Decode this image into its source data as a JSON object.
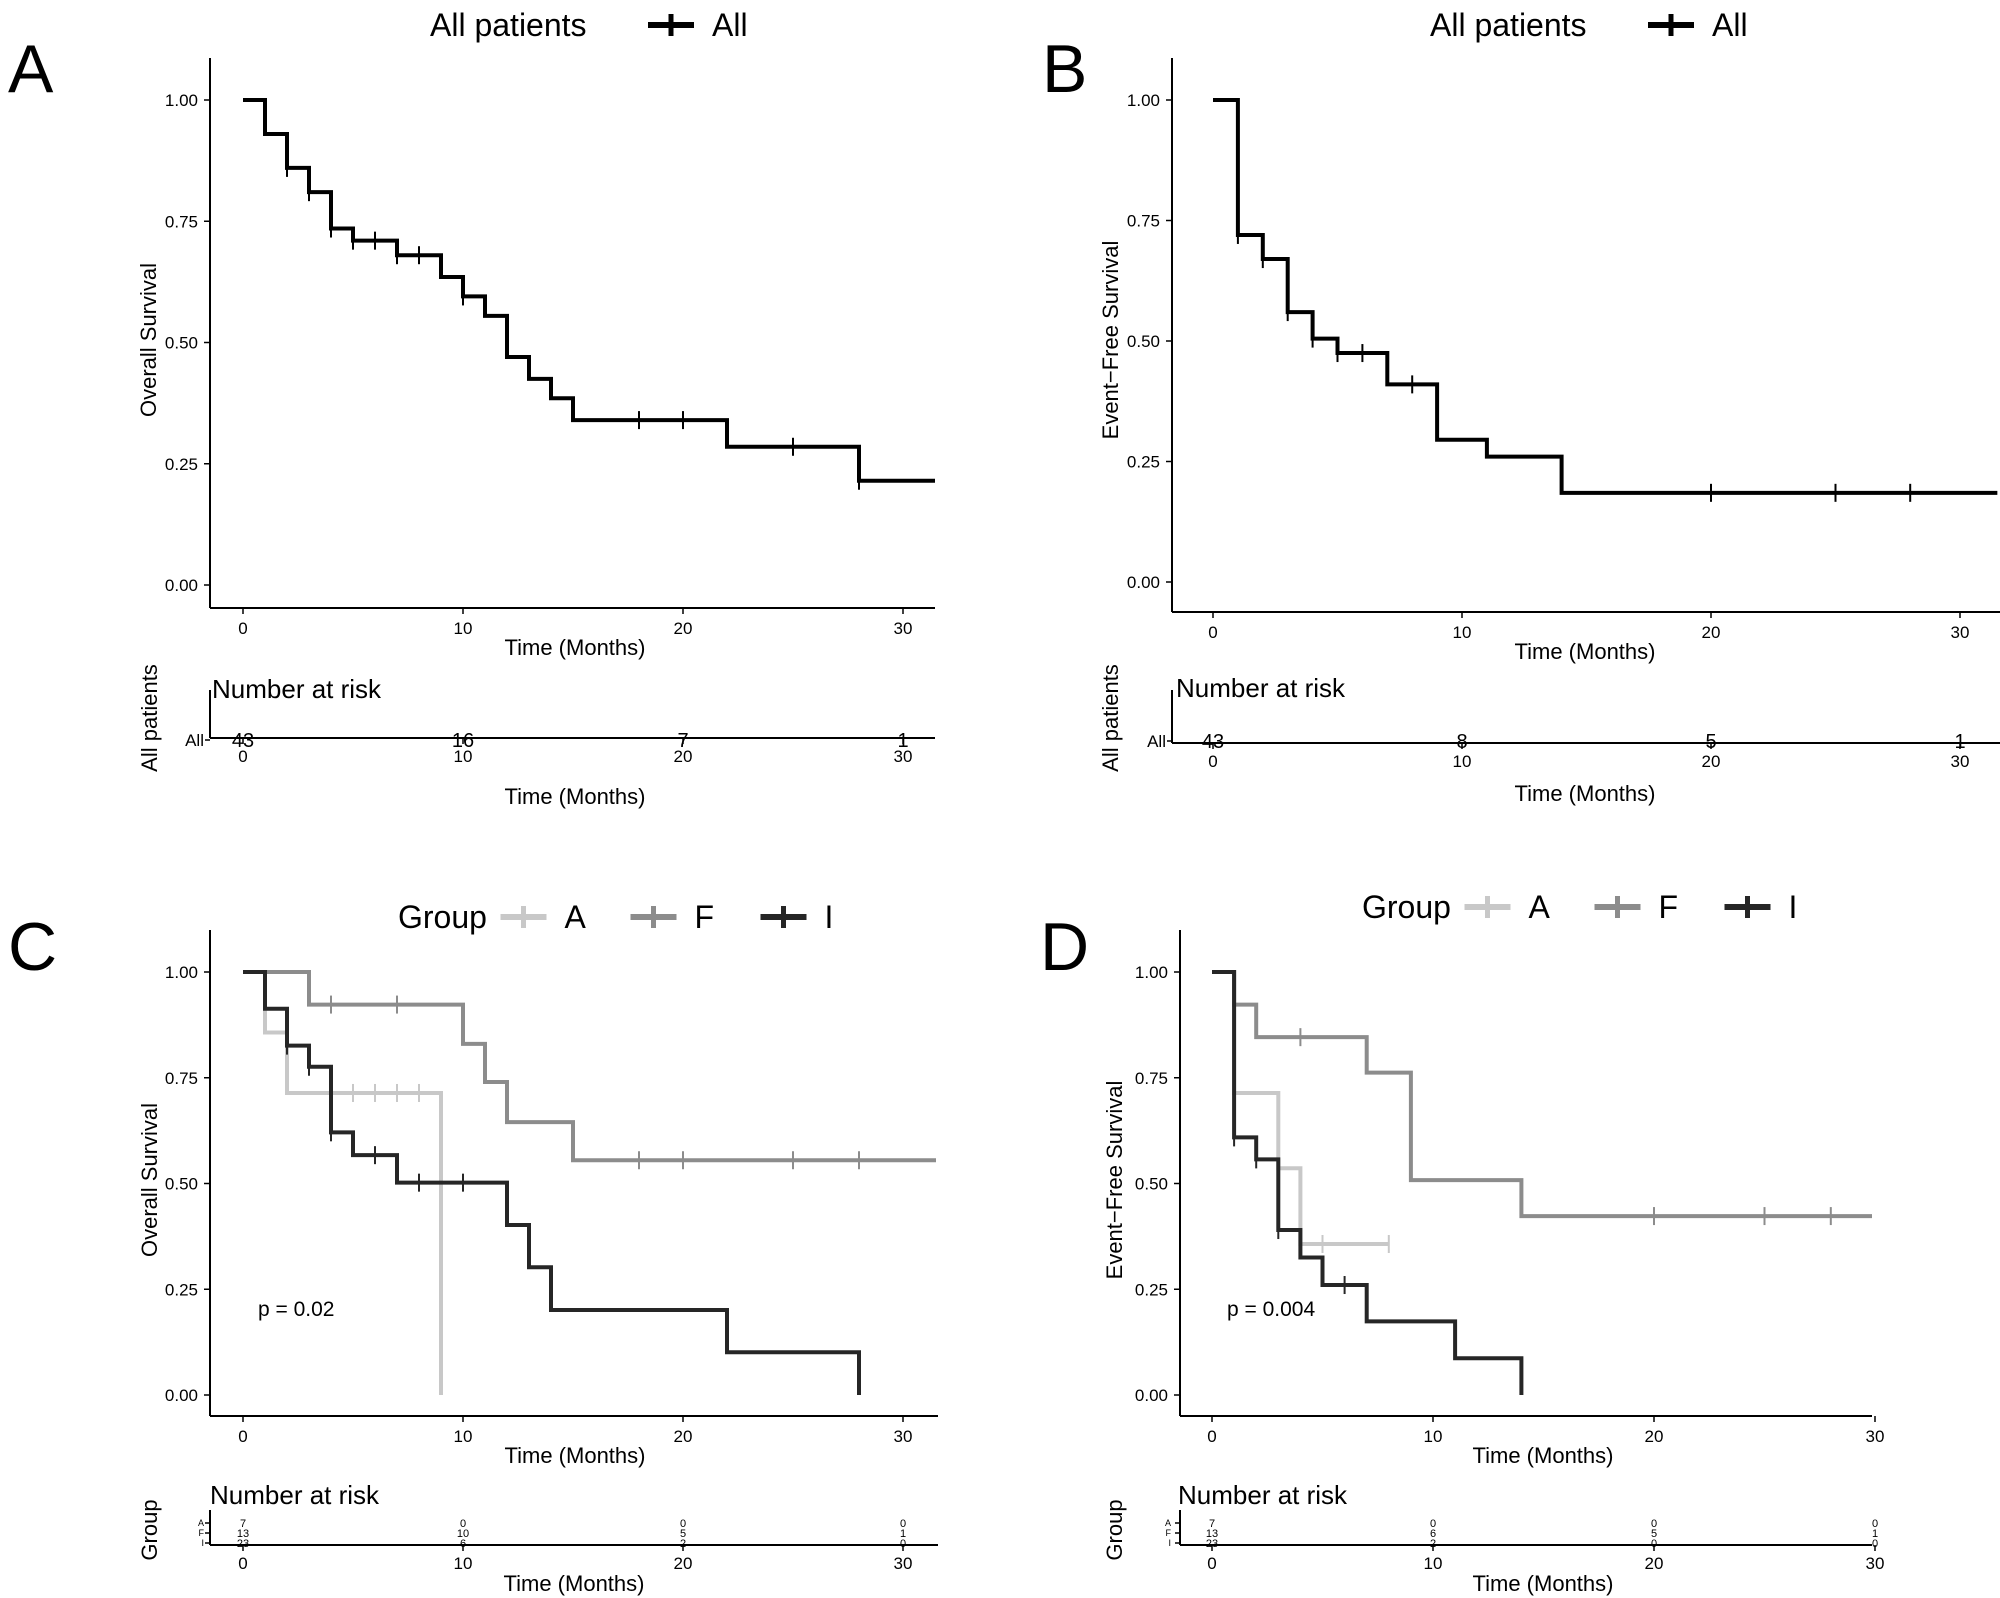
{
  "panels": [
    {
      "id": "A",
      "letter": "A",
      "legend_title": "All patients",
      "legend_items": [
        {
          "label": "All",
          "color": "#000000"
        }
      ],
      "ylabel": "Overall Survival",
      "xlabel": "Time (Months)",
      "risk_title": "Number at risk",
      "risk_ylabel": "All patients",
      "risk_xlabel": "Time (Months)",
      "risk_rows": [
        {
          "label": "All",
          "color": "#000000",
          "values": [
            "43",
            "16",
            "7",
            "1"
          ]
        }
      ],
      "risk_times": [
        0,
        10,
        20,
        30
      ],
      "pvalue": ""
    },
    {
      "id": "B",
      "letter": "B",
      "legend_title": "All patients",
      "legend_items": [
        {
          "label": "All",
          "color": "#000000"
        }
      ],
      "ylabel": "Event−Free Survival",
      "xlabel": "Time (Months)",
      "risk_title": "Number at risk",
      "risk_ylabel": "All patients",
      "risk_xlabel": "Time (Months)",
      "risk_rows": [
        {
          "label": "All",
          "color": "#000000",
          "values": [
            "43",
            "8",
            "5",
            "1"
          ]
        }
      ],
      "risk_times": [
        0,
        10,
        20,
        30
      ],
      "pvalue": ""
    },
    {
      "id": "C",
      "letter": "C",
      "legend_title": "Group",
      "legend_items": [
        {
          "label": "A",
          "color": "#c8c8c8"
        },
        {
          "label": "F",
          "color": "#8c8c8c"
        },
        {
          "label": "I",
          "color": "#262626"
        }
      ],
      "ylabel": "Overall Survival",
      "xlabel": "Time (Months)",
      "risk_title": "Number at risk",
      "risk_ylabel": "Group",
      "risk_xlabel": "Time (Months)",
      "risk_rows": [
        {
          "label": "A",
          "color": "#c8c8c8",
          "values": [
            "7",
            "0",
            "0",
            "0"
          ]
        },
        {
          "label": "F",
          "color": "#8c8c8c",
          "values": [
            "13",
            "10",
            "5",
            "1"
          ]
        },
        {
          "label": "I",
          "color": "#262626",
          "values": [
            "23",
            "6",
            "2",
            "0"
          ]
        }
      ],
      "risk_times": [
        0,
        10,
        20,
        30
      ],
      "pvalue": "p = 0.02"
    },
    {
      "id": "D",
      "letter": "D",
      "legend_title": "Group",
      "legend_items": [
        {
          "label": "A",
          "color": "#c8c8c8"
        },
        {
          "label": "F",
          "color": "#8c8c8c"
        },
        {
          "label": "I",
          "color": "#262626"
        }
      ],
      "ylabel": "Event−Free Survival",
      "xlabel": "Time (Months)",
      "risk_title": "Number at risk",
      "risk_ylabel": "Group",
      "risk_xlabel": "Time (Months)",
      "risk_rows": [
        {
          "label": "A",
          "color": "#c8c8c8",
          "values": [
            "7",
            "0",
            "0",
            "0"
          ]
        },
        {
          "label": "F",
          "color": "#8c8c8c",
          "values": [
            "13",
            "6",
            "5",
            "1"
          ]
        },
        {
          "label": "I",
          "color": "#262626",
          "values": [
            "23",
            "2",
            "0",
            "0"
          ]
        }
      ],
      "risk_times": [
        0,
        10,
        20,
        30
      ],
      "pvalue": "p = 0.004"
    }
  ],
  "chart_data": [
    {
      "type": "line",
      "panel": "A",
      "step": "post",
      "xlabel": "Time (Months)",
      "ylabel": "Overall Survival",
      "xlim": [
        -1.5,
        31.5
      ],
      "ylim": [
        -0.04,
        1.04
      ],
      "xticks": [
        0,
        10,
        20,
        30
      ],
      "yticks": [
        "0.00",
        "0.25",
        "0.50",
        "0.75",
        "1.00"
      ],
      "grid": false,
      "legend_position": "top",
      "series": [
        {
          "name": "All",
          "color": "#000000",
          "x": [
            0,
            1,
            2,
            3,
            4,
            5,
            7,
            9,
            10,
            11,
            12,
            13,
            14,
            15,
            22,
            28,
            31.5
          ],
          "y": [
            1.0,
            0.93,
            0.86,
            0.81,
            0.735,
            0.71,
            0.68,
            0.635,
            0.595,
            0.555,
            0.47,
            0.425,
            0.385,
            0.34,
            0.285,
            0.215,
            0.215
          ],
          "censor_x": [
            2,
            3,
            4,
            5,
            6,
            7,
            8,
            10,
            18,
            20,
            25,
            28
          ],
          "censor_y": [
            0.86,
            0.81,
            0.735,
            0.71,
            0.71,
            0.68,
            0.68,
            0.595,
            0.34,
            0.34,
            0.285,
            0.215
          ]
        }
      ]
    },
    {
      "type": "line",
      "panel": "B",
      "step": "post",
      "xlabel": "Time (Months)",
      "ylabel": "Event−Free Survival",
      "xlim": [
        -1.5,
        31.5
      ],
      "ylim": [
        -0.04,
        1.04
      ],
      "xticks": [
        0,
        10,
        20,
        30
      ],
      "yticks": [
        "0.00",
        "0.25",
        "0.50",
        "0.75",
        "1.00"
      ],
      "grid": false,
      "legend_position": "top",
      "series": [
        {
          "name": "All",
          "color": "#000000",
          "x": [
            0,
            1,
            2,
            3,
            4,
            5,
            7,
            9,
            11,
            14,
            31.5
          ],
          "y": [
            1.0,
            0.72,
            0.67,
            0.56,
            0.505,
            0.475,
            0.41,
            0.295,
            0.26,
            0.185,
            0.185
          ],
          "censor_x": [
            1,
            2,
            3,
            4,
            5,
            6,
            8,
            20,
            25,
            28
          ],
          "censor_y": [
            0.72,
            0.67,
            0.56,
            0.505,
            0.475,
            0.475,
            0.41,
            0.185,
            0.185,
            0.185
          ]
        }
      ]
    },
    {
      "type": "line",
      "panel": "C",
      "step": "post",
      "xlabel": "Time (Months)",
      "ylabel": "Overall Survival",
      "xlim": [
        -1.5,
        31.5
      ],
      "ylim": [
        -0.04,
        1.04
      ],
      "xticks": [
        0,
        10,
        20,
        30
      ],
      "yticks": [
        "0.00",
        "0.25",
        "0.50",
        "0.75",
        "1.00"
      ],
      "grid": false,
      "legend_position": "top",
      "series": [
        {
          "name": "A",
          "color": "#c8c8c8",
          "x": [
            0,
            1,
            2,
            9,
            9
          ],
          "y": [
            1.0,
            0.857,
            0.714,
            0.714,
            0.0
          ],
          "censor_x": [
            4,
            5,
            6,
            7,
            8
          ],
          "censor_y": [
            0.714,
            0.714,
            0.714,
            0.714,
            0.714
          ]
        },
        {
          "name": "F",
          "color": "#8c8c8c",
          "x": [
            0,
            3,
            10,
            11,
            12,
            15,
            31.5
          ],
          "y": [
            1.0,
            0.923,
            0.83,
            0.74,
            0.645,
            0.555,
            0.555
          ],
          "censor_x": [
            4,
            7,
            18,
            20,
            25,
            28
          ],
          "censor_y": [
            0.923,
            0.923,
            0.555,
            0.555,
            0.555,
            0.555
          ]
        },
        {
          "name": "I",
          "color": "#262626",
          "x": [
            0,
            1,
            2,
            3,
            4,
            5,
            7,
            12,
            13,
            14,
            22,
            28,
            28
          ],
          "y": [
            1.0,
            0.913,
            0.826,
            0.776,
            0.621,
            0.567,
            0.502,
            0.402,
            0.302,
            0.201,
            0.101,
            0.101,
            0.0
          ],
          "censor_x": [
            2,
            3,
            4,
            6,
            8,
            10
          ],
          "censor_y": [
            0.826,
            0.776,
            0.621,
            0.567,
            0.502,
            0.502
          ]
        }
      ]
    },
    {
      "type": "line",
      "panel": "D",
      "step": "post",
      "xlabel": "Time (Months)",
      "ylabel": "Event−Free Survival",
      "xlim": [
        -1.5,
        31.5
      ],
      "ylim": [
        -0.04,
        1.04
      ],
      "xticks": [
        0,
        10,
        20,
        30
      ],
      "yticks": [
        "0.00",
        "0.25",
        "0.50",
        "0.75",
        "1.00"
      ],
      "grid": false,
      "legend_position": "top",
      "series": [
        {
          "name": "A",
          "color": "#c8c8c8",
          "x": [
            0,
            1,
            3,
            4,
            8
          ],
          "y": [
            1.0,
            0.714,
            0.536,
            0.357,
            0.357
          ],
          "censor_x": [
            1,
            3,
            4,
            5,
            8
          ],
          "censor_y": [
            0.714,
            0.536,
            0.357,
            0.357,
            0.357
          ]
        },
        {
          "name": "F",
          "color": "#8c8c8c",
          "x": [
            0,
            1,
            2,
            7,
            9,
            14,
            31.5
          ],
          "y": [
            1.0,
            0.923,
            0.846,
            0.762,
            0.508,
            0.423,
            0.423
          ],
          "censor_x": [
            4,
            20,
            25,
            28
          ],
          "censor_y": [
            0.846,
            0.423,
            0.423,
            0.423
          ]
        },
        {
          "name": "I",
          "color": "#262626",
          "x": [
            0,
            1,
            2,
            3,
            4,
            5,
            7,
            11,
            14,
            14
          ],
          "y": [
            1.0,
            0.609,
            0.557,
            0.39,
            0.325,
            0.26,
            0.174,
            0.087,
            0.087,
            0.0
          ],
          "censor_x": [
            1,
            2,
            3,
            6
          ],
          "censor_y": [
            0.609,
            0.557,
            0.39,
            0.26
          ]
        }
      ]
    }
  ]
}
